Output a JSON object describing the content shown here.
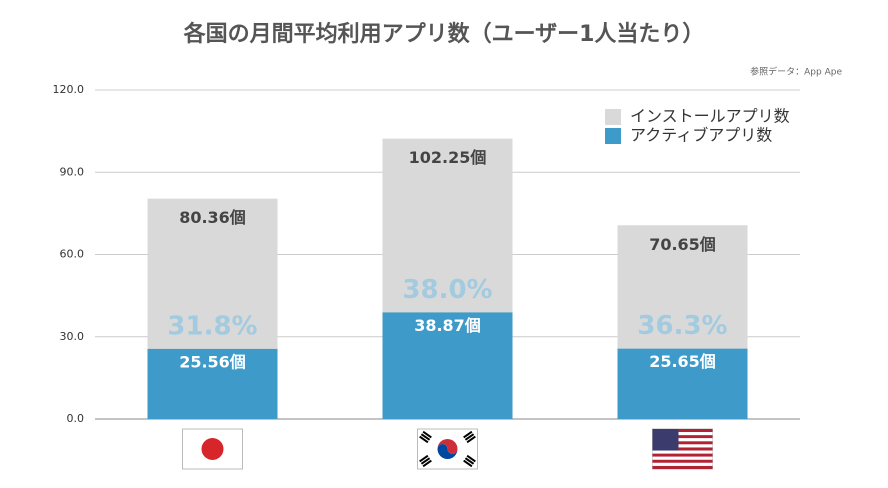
{
  "chart_data": {
    "type": "overlap_bar",
    "title": "各国の月間平均利用アプリ数（ユーザー1人当たり）",
    "source": "参照データ：App Ape",
    "categories": [
      null,
      null,
      null
    ],
    "series": [
      {
        "name": "インストールアプリ数",
        "color": "#d9d9d9",
        "values": [
          80.36,
          102.25,
          70.65
        ],
        "value_labels": [
          "80.36個",
          "102.25個",
          "70.65個"
        ]
      },
      {
        "name": "アクティブアプリ数",
        "color": "#3d9ac9",
        "values": [
          25.56,
          38.87,
          25.65
        ],
        "value_labels": [
          "25.56個",
          "38.87個",
          "25.65個"
        ]
      }
    ],
    "ratios": {
      "values": [
        31.8,
        38.0,
        36.3
      ],
      "value_labels": [
        "31.8%",
        "38.0%",
        "36.3%"
      ],
      "color": "#a3cbe0"
    },
    "ylim": [
      0,
      120
    ],
    "yticks": [
      {
        "value": 0,
        "label": "0.0"
      },
      {
        "value": 30,
        "label": "30.0"
      },
      {
        "value": 60,
        "label": "60.0"
      },
      {
        "value": 90,
        "label": "90.0"
      },
      {
        "value": 120,
        "label": "120.0"
      }
    ],
    "grid": true
  }
}
